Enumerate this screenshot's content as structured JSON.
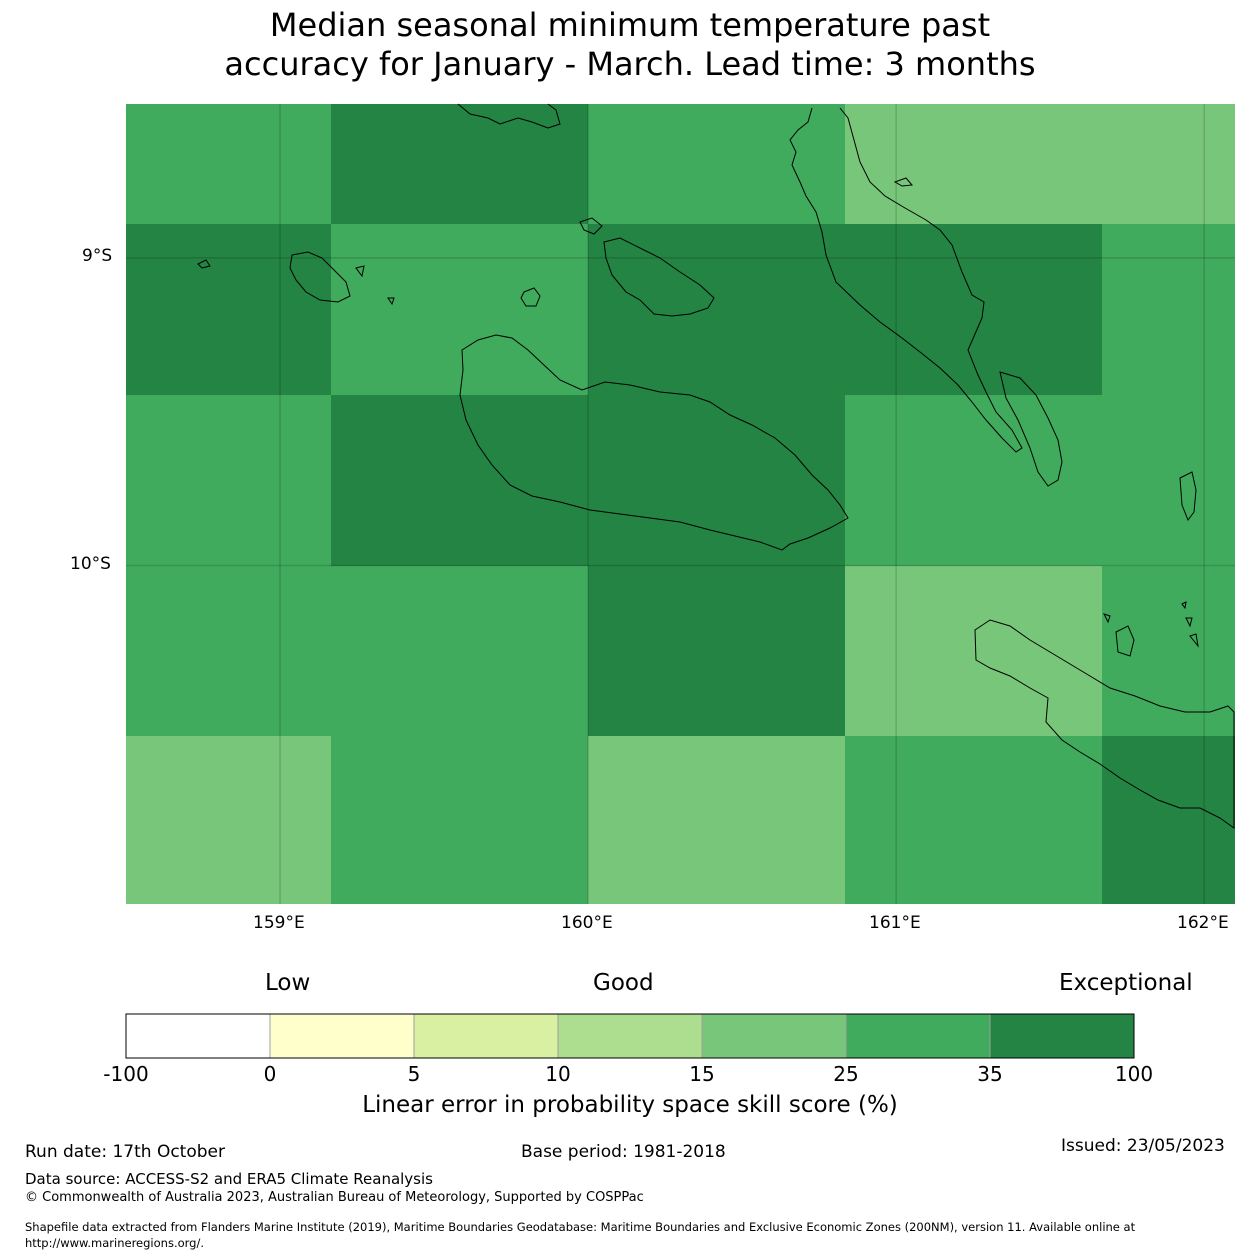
{
  "title": {
    "line1": "Median seasonal minimum temperature past",
    "line2": "accuracy for January - March. Lead time: 3 months"
  },
  "map": {
    "lon_range": [
      158.5,
      162.1
    ],
    "lat_range": [
      -11.1,
      -8.5
    ],
    "lat_labels": [
      "9°S",
      "10°S"
    ],
    "lon_labels": [
      "159°E",
      "160°E",
      "161°E",
      "162°E"
    ],
    "grid_lons": [
      158.5,
      159.1667,
      160.0,
      160.8333,
      161.6667,
      162.1
    ],
    "grid_lats": [
      -8.5,
      -8.8889,
      -9.4444,
      -10.0,
      -10.5556,
      -11.1
    ],
    "skill_cells": [
      [
        25,
        35,
        25,
        15,
        15
      ],
      [
        35,
        25,
        35,
        35,
        25
      ],
      [
        25,
        35,
        35,
        25,
        25
      ],
      [
        25,
        25,
        35,
        15,
        25
      ],
      [
        15,
        25,
        15,
        25,
        35
      ]
    ]
  },
  "legend": {
    "categories": [
      "Low",
      "Good",
      "Exceptional"
    ],
    "tick_labels": [
      "-100",
      "0",
      "5",
      "10",
      "15",
      "25",
      "35",
      "100"
    ],
    "colors": [
      "#ffffff",
      "#ffffcc",
      "#d9f0a3",
      "#addd8e",
      "#78c679",
      "#41ab5d",
      "#238443"
    ],
    "title": "Linear error in probability space skill score (%)"
  },
  "footer": {
    "run_date": "Run date: 17th October",
    "base_period": "Base period: 1981-2018",
    "issued": "Issued: 23/05/2023",
    "data_source": "Data source: ACCESS-S2 and ERA5 Climate Reanalysis",
    "copyright": "© Commonwealth of Australia 2023, Australian Bureau of Meteorology, Supported by COSPPac",
    "shapefile_line1": "Shapefile data extracted from Flanders Marine Institute (2019), Maritime Boundaries Geodatabase: Maritime Boundaries and Exclusive Economic Zones (200NM), version 11. Available online at",
    "shapefile_line2": "http://www.marineregions.org/."
  }
}
